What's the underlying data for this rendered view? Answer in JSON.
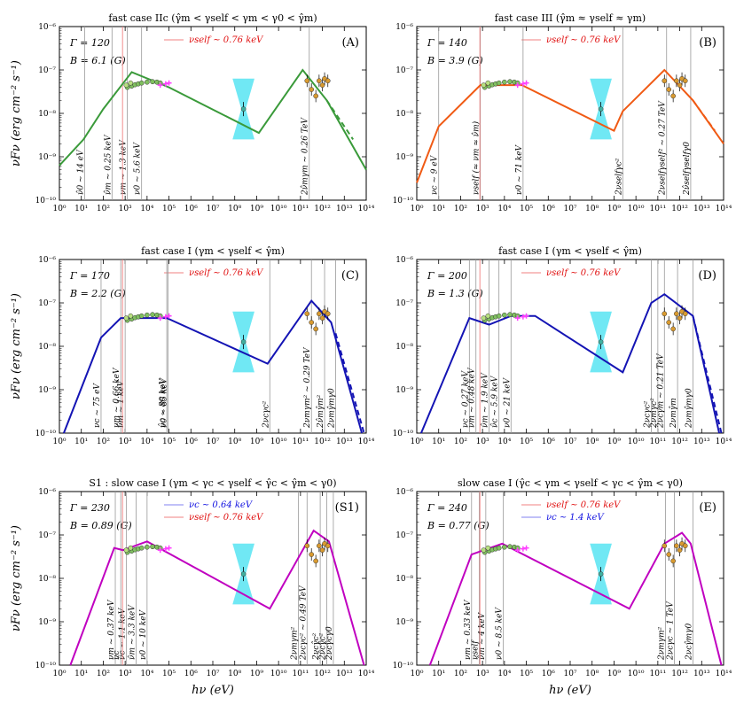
{
  "figure": {
    "xlabel": "hν (eV)",
    "ylabel": "νFν (erg cm⁻² s⁻¹)",
    "xticks": [
      "10⁰",
      "10¹",
      "10²",
      "10³",
      "10⁴",
      "10⁵",
      "10⁶",
      "10⁷",
      "10⁸",
      "10⁹",
      "10¹⁰",
      "10¹¹",
      "10¹²",
      "10¹³",
      "10¹⁴"
    ],
    "yticks": [
      "10⁻⁶",
      "10⁻⁷",
      "10⁻⁸",
      "10⁻⁹",
      "10⁻¹⁰"
    ]
  },
  "colors": {
    "A": "#3a9a3a",
    "B": "#f05a14",
    "C": "#1414b4",
    "D": "#1414b4",
    "S1": "#c000c0",
    "E": "#c000c0",
    "self_line": "#f08080",
    "c_line": "#8080f0",
    "cyan": "#40e0f0",
    "data_point": "#d89a30",
    "xray_point": "#80c060",
    "magenta_mark": "#ff40ff"
  },
  "chart_data": [
    {
      "id": "A",
      "type": "line",
      "title": "fast case IIc (γ̂m < γself < γm < γ0 < γ̂m)",
      "letter": "(A)",
      "gamma": "Γ = 120",
      "field": "B = 6.1 (G)",
      "legend": [
        {
          "text": "νself ~ 0.76 keV",
          "color": "self_line"
        }
      ],
      "xlim": [
        0,
        14
      ],
      "ylim": [
        -10,
        -6
      ],
      "curve": [
        [
          0,
          -9.2
        ],
        [
          1.1,
          -8.6
        ],
        [
          2.0,
          -7.9
        ],
        [
          3.3,
          -7.05
        ],
        [
          5.0,
          -7.4
        ],
        [
          9.1,
          -8.45
        ],
        [
          11.1,
          -7.0
        ],
        [
          12.2,
          -7.7
        ],
        [
          14,
          -9.3
        ]
      ],
      "dashed": [
        [
          12.2,
          -7.7
        ],
        [
          13.4,
          -8.6
        ]
      ],
      "vlines": [
        {
          "x": 1.15,
          "label": "ν̂0 ~ 14 eV"
        },
        {
          "x": 2.4,
          "label": "ν̂m ~ 0.25 keV"
        },
        {
          "x": 3.1,
          "label": "νm ~ 1.3 keV"
        },
        {
          "x": 3.75,
          "label": "ν0 ~ 5.6 keV"
        },
        {
          "x": 11.4,
          "label": "2ν̂mγm ~ 0.26 TeV"
        }
      ]
    },
    {
      "id": "B",
      "type": "line",
      "title": "fast case III (γ̂m ≈ γself ≈ γm)",
      "letter": "(B)",
      "gamma": "Γ = 140",
      "field": "B = 3.9 (G)",
      "legend": [
        {
          "text": "νself ~ 0.76 keV",
          "color": "self_line"
        }
      ],
      "xlim": [
        0,
        14
      ],
      "ylim": [
        -10,
        -6
      ],
      "curve": [
        [
          0,
          -9.6
        ],
        [
          1.0,
          -8.3
        ],
        [
          2.9,
          -7.35
        ],
        [
          4.8,
          -7.35
        ],
        [
          9.0,
          -8.4
        ],
        [
          9.4,
          -7.95
        ],
        [
          11.3,
          -7.0
        ],
        [
          12.6,
          -7.7
        ],
        [
          14,
          -8.7
        ]
      ],
      "dashed": [
        [
          12.6,
          -7.7
        ],
        [
          13.6,
          -8.4
        ]
      ],
      "vlines": [
        {
          "x": 1.0,
          "label": "νc ~ 9 eV"
        },
        {
          "x": 2.9,
          "label": "νself (≈ νm ≈ ν̂m)"
        },
        {
          "x": 4.85,
          "label": "ν0 ~ 71 keV"
        },
        {
          "x": 9.4,
          "label": "2νselfγc²"
        },
        {
          "x": 11.4,
          "label": "2νselfγself² ~ 0.27 TeV"
        },
        {
          "x": 12.5,
          "label": "2ν̂selfγselfγ0"
        }
      ]
    },
    {
      "id": "C",
      "type": "line",
      "title": "fast case I (γm < γself < γ̂m)",
      "letter": "(C)",
      "gamma": "Γ = 170",
      "field": "B = 2.2 (G)",
      "legend": [
        {
          "text": "νself ~ 0.76 keV",
          "color": "self_line"
        }
      ],
      "xlim": [
        0,
        14
      ],
      "ylim": [
        -10,
        -6
      ],
      "curve": [
        [
          0.2,
          -10
        ],
        [
          1.9,
          -7.8
        ],
        [
          2.8,
          -7.35
        ],
        [
          4.9,
          -7.35
        ],
        [
          9.5,
          -8.4
        ],
        [
          11.5,
          -6.95
        ],
        [
          12.4,
          -7.45
        ],
        [
          13.8,
          -10
        ]
      ],
      "dashed": [
        [
          12.6,
          -7.7
        ],
        [
          13.9,
          -10
        ]
      ],
      "vlines": [
        {
          "x": 1.9,
          "label": "νc ~ 75 eV"
        },
        {
          "x": 2.8,
          "label": "νm ~ 0.66 keV"
        },
        {
          "x": 3.0,
          "label": "ν̂m ~ 1 keV"
        },
        {
          "x": 4.9,
          "label": "ν̂c ~ 80 keV"
        },
        {
          "x": 4.95,
          "label": "ν0 ~ 85 keV"
        },
        {
          "x": 9.6,
          "label": "2νcγc²"
        },
        {
          "x": 11.5,
          "label": "2νmγm² ~ 0.29 TeV"
        },
        {
          "x": 12.1,
          "label": "2ν̂mγ̂m²"
        },
        {
          "x": 12.6,
          "label": "2νmγ̂mγ0"
        }
      ]
    },
    {
      "id": "D",
      "type": "line",
      "title": "fast case I (γm < γself < γ̂m)",
      "letter": "(D)",
      "gamma": "Γ = 200",
      "field": "B = 1.3 (G)",
      "legend": [
        {
          "text": "νself ~ 0.76 keV",
          "color": "self_line"
        }
      ],
      "xlim": [
        0,
        14
      ],
      "ylim": [
        -10,
        -6
      ],
      "curve": [
        [
          0.2,
          -10
        ],
        [
          2.4,
          -7.35
        ],
        [
          3.3,
          -7.5
        ],
        [
          4.3,
          -7.3
        ],
        [
          5.4,
          -7.3
        ],
        [
          9.4,
          -8.6
        ],
        [
          10.7,
          -7.0
        ],
        [
          11.3,
          -6.8
        ],
        [
          12.6,
          -7.3
        ],
        [
          13.8,
          -10
        ]
      ],
      "dashed": [
        [
          12.6,
          -7.3
        ],
        [
          13.9,
          -10
        ]
      ],
      "vlines": [
        {
          "x": 2.4,
          "label": "νc ~ 0.27 keV"
        },
        {
          "x": 2.7,
          "label": "νm ~ 0.48 keV"
        },
        {
          "x": 3.3,
          "label": "ν̂m ~ 1.9 keV"
        },
        {
          "x": 3.75,
          "label": "ν̂c ~ 5.9 keV"
        },
        {
          "x": 4.3,
          "label": "ν0 ~ 21 keV"
        },
        {
          "x": 10.7,
          "label": "2νcγc²"
        },
        {
          "x": 11.0,
          "label": "2νmγc²"
        },
        {
          "x": 11.3,
          "label": "2νcγm ~ 0.21 TeV"
        },
        {
          "x": 11.9,
          "label": "2νmγ̂m"
        },
        {
          "x": 12.6,
          "label": "2νmγ̂mγ0"
        }
      ]
    },
    {
      "id": "S1",
      "type": "line",
      "title": "S1 : slow case I (γm < γc < γself < γ̂c < γ̂m < γ0)",
      "letter": "(S1)",
      "gamma": "Γ = 230",
      "field": "B = 0.89 (G)",
      "legend": [
        {
          "text": "νc ~ 0.64 keV",
          "color": "c_line"
        },
        {
          "text": "νself ~ 0.76 keV",
          "color": "self_line"
        }
      ],
      "xlim": [
        0,
        14
      ],
      "ylim": [
        -10,
        -6
      ],
      "curve": [
        [
          0.5,
          -10
        ],
        [
          2.5,
          -7.3
        ],
        [
          2.9,
          -7.35
        ],
        [
          4.0,
          -7.15
        ],
        [
          9.6,
          -8.7
        ],
        [
          11.6,
          -6.9
        ],
        [
          12.3,
          -7.15
        ],
        [
          13.9,
          -10
        ]
      ],
      "dashed": [],
      "vlines": [
        {
          "x": 2.55,
          "label": "νm ~ 0.37 keV"
        },
        {
          "x": 2.8,
          "label": "νc"
        },
        {
          "x": 3.05,
          "label": "ν̂c ~ 1.1 keV"
        },
        {
          "x": 3.5,
          "label": "ν̂m ~ 3.3 keV"
        },
        {
          "x": 4.0,
          "label": "ν0 ~ 10 keV"
        },
        {
          "x": 10.9,
          "label": "2νmγm²"
        },
        {
          "x": 11.3,
          "label": "2νcγc² ~ 0.49 TeV"
        },
        {
          "x": 11.9,
          "label": "2νcγ̂c²"
        },
        {
          "x": 12.2,
          "label": "2ν̂cγ̂c²"
        },
        {
          "x": 12.5,
          "label": "2νcγ̂cγ0"
        }
      ]
    },
    {
      "id": "E",
      "type": "line",
      "title": "slow case I (γ̂c < γm < γself < γc < γ̂m < γ0)",
      "letter": "(E)",
      "gamma": "Γ = 240",
      "field": "B = 0.77 (G)",
      "legend": [
        {
          "text": "νself ~ 0.76 keV",
          "color": "self_line"
        },
        {
          "text": "νc ~ 1.4 keV",
          "color": "c_line"
        }
      ],
      "xlim": [
        0,
        14
      ],
      "ylim": [
        -10,
        -6
      ],
      "curve": [
        [
          0.6,
          -10
        ],
        [
          2.5,
          -7.45
        ],
        [
          3.9,
          -7.2
        ],
        [
          9.7,
          -8.7
        ],
        [
          11.3,
          -7.2
        ],
        [
          12.1,
          -6.95
        ],
        [
          12.5,
          -7.2
        ],
        [
          13.9,
          -10
        ]
      ],
      "dashed": [],
      "vlines": [
        {
          "x": 2.5,
          "label": "νm ~ 0.33 keV"
        },
        {
          "x": 2.85,
          "label": "νself"
        },
        {
          "x": 3.15,
          "label": "ν̂m ~ 4 keV"
        },
        {
          "x": 3.95,
          "label": "ν0 ~ 8.5 keV"
        },
        {
          "x": 11.35,
          "label": "2νmγm²"
        },
        {
          "x": 11.75,
          "label": "2νcγc ~ 1 TeV"
        },
        {
          "x": 12.6,
          "label": "2νcγ̂mγ0"
        }
      ]
    }
  ],
  "observed": {
    "xray": [
      [
        3.1,
        -7.4
      ],
      [
        3.3,
        -7.37
      ],
      [
        3.45,
        -7.34
      ],
      [
        3.6,
        -7.32
      ],
      [
        3.75,
        -7.3
      ],
      [
        4.0,
        -7.28
      ],
      [
        4.25,
        -7.27
      ],
      [
        4.45,
        -7.28
      ],
      [
        4.6,
        -7.3
      ]
    ],
    "optical": [
      [
        3.05,
        -7.35
      ],
      [
        3.25,
        -7.3
      ]
    ],
    "magenta": [
      [
        4.6,
        -7.35
      ],
      [
        4.85,
        -7.32
      ],
      [
        5.0,
        -7.3
      ]
    ],
    "fermi": [
      8.4,
      -7.9
    ],
    "fermi_band": [
      [
        7.9,
        -7.2
      ],
      [
        8.9,
        -7.2
      ],
      [
        8.5,
        -7.9
      ],
      [
        8.9,
        -8.6
      ],
      [
        7.9,
        -8.6
      ],
      [
        8.3,
        -7.9
      ]
    ],
    "tev": [
      [
        11.3,
        -7.25
      ],
      [
        11.5,
        -7.45
      ],
      [
        11.7,
        -7.6
      ],
      [
        11.85,
        -7.25
      ],
      [
        12.0,
        -7.35
      ],
      [
        12.1,
        -7.2
      ],
      [
        12.25,
        -7.25
      ]
    ]
  }
}
